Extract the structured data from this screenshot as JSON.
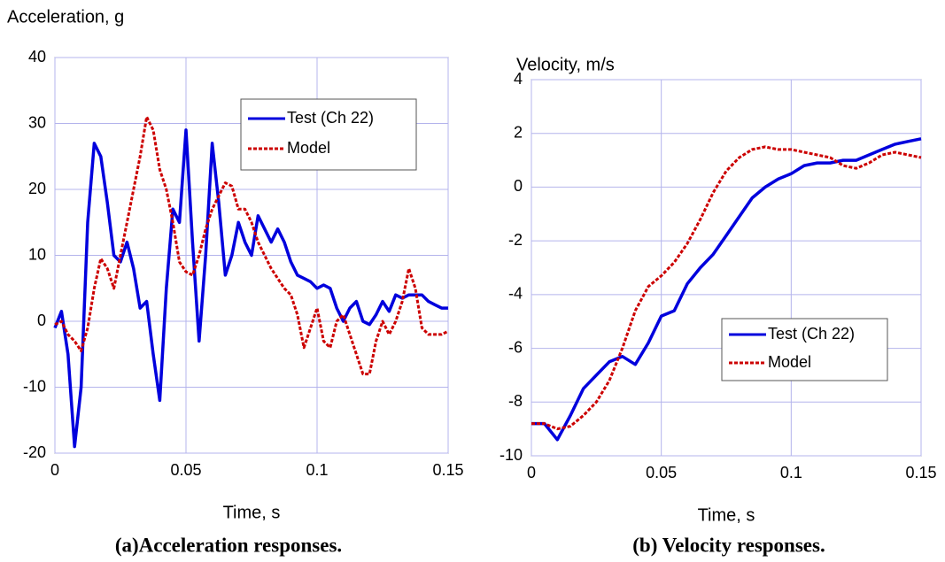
{
  "chart_data": [
    {
      "type": "line",
      "y_label": "Acceleration, g",
      "x_label": "Time, s",
      "x": [
        0,
        0.0025,
        0.005,
        0.0075,
        0.01,
        0.0125,
        0.015,
        0.0175,
        0.02,
        0.0225,
        0.025,
        0.0275,
        0.03,
        0.0325,
        0.035,
        0.0375,
        0.04,
        0.0425,
        0.045,
        0.0475,
        0.05,
        0.0525,
        0.055,
        0.0575,
        0.06,
        0.0625,
        0.065,
        0.0675,
        0.07,
        0.0725,
        0.075,
        0.0775,
        0.08,
        0.0825,
        0.085,
        0.0875,
        0.09,
        0.0925,
        0.095,
        0.0975,
        0.1,
        0.1025,
        0.105,
        0.1075,
        0.11,
        0.1125,
        0.115,
        0.1175,
        0.12,
        0.1225,
        0.125,
        0.1275,
        0.13,
        0.1325,
        0.135,
        0.1375,
        0.14,
        0.1425,
        0.145,
        0.1475,
        0.15
      ],
      "series": [
        {
          "name": "Test (Ch 22)",
          "color": "#0000dd",
          "dashed": false,
          "values": [
            -1,
            1.5,
            -5,
            -19,
            -10,
            15,
            27,
            25,
            18,
            10,
            9,
            12,
            8,
            2,
            3,
            -5,
            -12,
            5,
            17,
            15,
            29,
            12,
            -3,
            10,
            27,
            18,
            7,
            10,
            15,
            12,
            10,
            16,
            14,
            12,
            14,
            12,
            9,
            7,
            6.5,
            6,
            5,
            5.5,
            5,
            2,
            0,
            2,
            3,
            0,
            -0.5,
            1,
            3,
            1.5,
            4,
            3.5,
            4,
            4,
            4,
            3,
            2.5,
            2,
            2
          ]
        },
        {
          "name": "Model",
          "color": "#cc0000",
          "dashed": true,
          "values": [
            -0.5,
            0,
            -2,
            -3,
            -4.5,
            -1,
            5,
            9.5,
            8,
            5,
            10,
            15,
            20,
            25,
            31,
            29,
            23,
            20,
            15,
            9,
            7.5,
            7,
            10,
            14,
            17,
            19,
            21,
            20.5,
            17,
            17,
            15,
            12,
            10,
            8,
            6.5,
            5,
            4,
            1,
            -4,
            -1,
            2,
            -3,
            -4,
            0,
            1,
            -2,
            -5,
            -8,
            -8,
            -3,
            0,
            -2,
            0,
            3,
            8,
            5,
            -1,
            -2,
            -2,
            -2,
            -1.5
          ]
        }
      ],
      "xlim": [
        0,
        0.15
      ],
      "xticks": [
        0,
        0.05,
        0.1,
        0.15
      ],
      "ylim": [
        -20,
        40
      ],
      "yticks": [
        -20,
        -10,
        0,
        10,
        20,
        30,
        40
      ],
      "grid": true,
      "legend": "upper right"
    },
    {
      "type": "line",
      "y_label": "Velocity, m/s",
      "x_label": "Time, s",
      "x": [
        0,
        0.005,
        0.01,
        0.015,
        0.02,
        0.025,
        0.03,
        0.035,
        0.04,
        0.045,
        0.05,
        0.055,
        0.06,
        0.065,
        0.07,
        0.075,
        0.08,
        0.085,
        0.09,
        0.095,
        0.1,
        0.105,
        0.11,
        0.115,
        0.12,
        0.125,
        0.13,
        0.135,
        0.14,
        0.145,
        0.15
      ],
      "series": [
        {
          "name": "Test (Ch 22)",
          "color": "#0000dd",
          "dashed": false,
          "values": [
            -8.8,
            -8.8,
            -9.4,
            -8.5,
            -7.5,
            -7,
            -6.5,
            -6.3,
            -6.6,
            -5.8,
            -4.8,
            -4.6,
            -3.6,
            -3,
            -2.5,
            -1.8,
            -1.1,
            -0.4,
            0,
            0.3,
            0.5,
            0.8,
            0.9,
            0.9,
            1,
            1,
            1.2,
            1.4,
            1.6,
            1.7,
            1.8
          ]
        },
        {
          "name": "Model",
          "color": "#cc0000",
          "dashed": true,
          "values": [
            -8.8,
            -8.8,
            -9,
            -8.9,
            -8.5,
            -8,
            -7.2,
            -6,
            -4.6,
            -3.7,
            -3.3,
            -2.8,
            -2.1,
            -1.2,
            -0.2,
            0.6,
            1.1,
            1.4,
            1.5,
            1.4,
            1.4,
            1.3,
            1.2,
            1.1,
            0.8,
            0.7,
            0.9,
            1.2,
            1.3,
            1.2,
            1.1
          ]
        }
      ],
      "xlim": [
        0,
        0.15
      ],
      "xticks": [
        0,
        0.05,
        0.1,
        0.15
      ],
      "ylim": [
        -10,
        4
      ],
      "yticks": [
        -10,
        -8,
        -6,
        -4,
        -2,
        0,
        2,
        4
      ],
      "grid": true,
      "legend": "lower right"
    }
  ],
  "captions": [
    "(a)Acceleration responses.",
    "(b) Velocity responses."
  ]
}
